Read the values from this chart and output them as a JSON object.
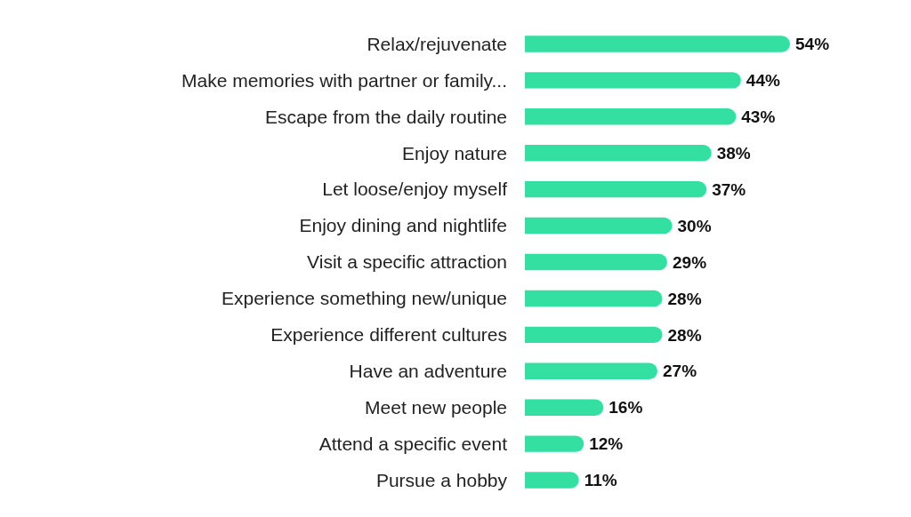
{
  "chart_data": {
    "type": "bar",
    "orientation": "horizontal",
    "categories": [
      "Relax/rejuvenate",
      "Make memories with partner or family...",
      "Escape from the daily routine",
      "Enjoy nature",
      "Let loose/enjoy myself",
      "Enjoy dining and nightlife",
      "Visit a specific attraction",
      "Experience something new/unique",
      "Experience different cultures",
      "Have an adventure",
      "Meet new people",
      "Attend a specific event",
      "Pursue a hobby"
    ],
    "values": [
      54,
      44,
      43,
      38,
      37,
      30,
      29,
      28,
      28,
      27,
      16,
      12,
      11
    ],
    "value_labels": [
      "54%",
      "44%",
      "43%",
      "38%",
      "37%",
      "30%",
      "29%",
      "28%",
      "28%",
      "27%",
      "16%",
      "12%",
      "11%"
    ],
    "color": "#34e0a1"
  }
}
